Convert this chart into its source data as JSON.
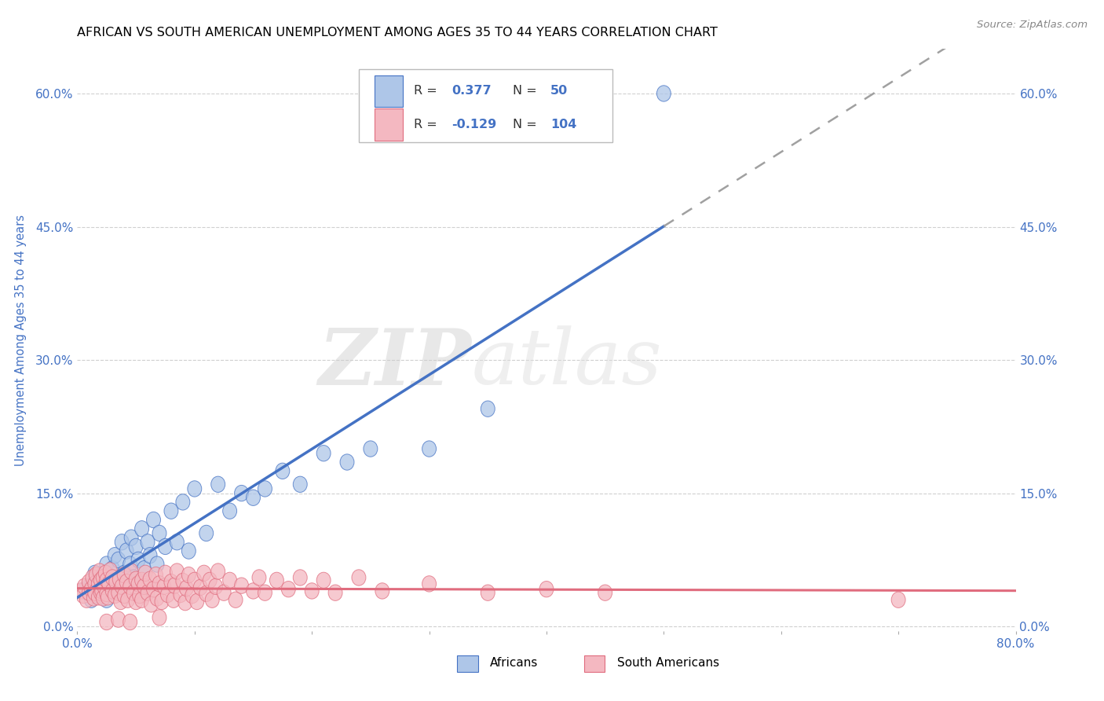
{
  "title": "AFRICAN VS SOUTH AMERICAN UNEMPLOYMENT AMONG AGES 35 TO 44 YEARS CORRELATION CHART",
  "source": "Source: ZipAtlas.com",
  "ylabel": "Unemployment Among Ages 35 to 44 years",
  "xlim": [
    0.0,
    0.8
  ],
  "ylim": [
    -0.005,
    0.65
  ],
  "xtick_labels_show": [
    "0.0%",
    "80.0%"
  ],
  "xtick_positions_show": [
    0.0,
    0.8
  ],
  "yticks": [
    0.0,
    0.15,
    0.3,
    0.45,
    0.6
  ],
  "yticklabels": [
    "0.0%",
    "15.0%",
    "30.0%",
    "45.0%",
    "60.0%"
  ],
  "african_R": 0.377,
  "african_N": 50,
  "south_american_R": -0.129,
  "south_american_N": 104,
  "african_fill_color": "#aec6e8",
  "african_edge_color": "#4472c4",
  "south_american_fill_color": "#f4b8c1",
  "south_american_edge_color": "#e06c7e",
  "legend_text_color": "#4472c4",
  "axis_color": "#4472c4",
  "grid_color": "#d0d0d0",
  "african_line_color": "#4472c4",
  "south_american_line_color": "#e06c7e",
  "dashed_continuation_color": "#a0a0a0",
  "african_x": [
    0.005,
    0.01,
    0.012,
    0.015,
    0.018,
    0.02,
    0.022,
    0.025,
    0.025,
    0.028,
    0.03,
    0.032,
    0.033,
    0.035,
    0.037,
    0.038,
    0.04,
    0.042,
    0.045,
    0.046,
    0.048,
    0.05,
    0.052,
    0.055,
    0.057,
    0.06,
    0.062,
    0.065,
    0.068,
    0.07,
    0.075,
    0.08,
    0.085,
    0.09,
    0.095,
    0.1,
    0.11,
    0.12,
    0.13,
    0.14,
    0.15,
    0.16,
    0.175,
    0.19,
    0.21,
    0.23,
    0.25,
    0.3,
    0.35,
    0.5
  ],
  "african_y": [
    0.04,
    0.045,
    0.03,
    0.06,
    0.035,
    0.055,
    0.04,
    0.07,
    0.03,
    0.05,
    0.065,
    0.08,
    0.04,
    0.075,
    0.055,
    0.095,
    0.06,
    0.085,
    0.07,
    0.1,
    0.055,
    0.09,
    0.075,
    0.11,
    0.065,
    0.095,
    0.08,
    0.12,
    0.07,
    0.105,
    0.09,
    0.13,
    0.095,
    0.14,
    0.085,
    0.155,
    0.105,
    0.16,
    0.13,
    0.15,
    0.145,
    0.155,
    0.175,
    0.16,
    0.195,
    0.185,
    0.2,
    0.2,
    0.245,
    0.6
  ],
  "south_american_x": [
    0.003,
    0.005,
    0.006,
    0.008,
    0.01,
    0.01,
    0.012,
    0.013,
    0.014,
    0.015,
    0.015,
    0.016,
    0.018,
    0.018,
    0.019,
    0.02,
    0.02,
    0.021,
    0.022,
    0.022,
    0.023,
    0.024,
    0.025,
    0.025,
    0.026,
    0.027,
    0.028,
    0.03,
    0.03,
    0.032,
    0.033,
    0.035,
    0.036,
    0.037,
    0.038,
    0.04,
    0.04,
    0.042,
    0.043,
    0.045,
    0.046,
    0.048,
    0.05,
    0.05,
    0.052,
    0.053,
    0.055,
    0.055,
    0.057,
    0.058,
    0.06,
    0.062,
    0.063,
    0.065,
    0.067,
    0.068,
    0.07,
    0.072,
    0.074,
    0.075,
    0.077,
    0.08,
    0.082,
    0.083,
    0.085,
    0.088,
    0.09,
    0.092,
    0.093,
    0.095,
    0.098,
    0.1,
    0.102,
    0.105,
    0.108,
    0.11,
    0.113,
    0.115,
    0.118,
    0.12,
    0.125,
    0.13,
    0.135,
    0.14,
    0.15,
    0.155,
    0.16,
    0.17,
    0.18,
    0.19,
    0.2,
    0.21,
    0.22,
    0.24,
    0.26,
    0.3,
    0.35,
    0.4,
    0.45,
    0.7,
    0.025,
    0.035,
    0.045,
    0.07
  ],
  "south_american_y": [
    0.04,
    0.035,
    0.045,
    0.03,
    0.05,
    0.038,
    0.042,
    0.055,
    0.032,
    0.048,
    0.038,
    0.058,
    0.033,
    0.048,
    0.062,
    0.038,
    0.052,
    0.04,
    0.055,
    0.032,
    0.045,
    0.06,
    0.037,
    0.052,
    0.033,
    0.048,
    0.063,
    0.04,
    0.055,
    0.035,
    0.05,
    0.038,
    0.053,
    0.028,
    0.045,
    0.058,
    0.035,
    0.05,
    0.03,
    0.045,
    0.062,
    0.038,
    0.053,
    0.028,
    0.048,
    0.035,
    0.052,
    0.03,
    0.045,
    0.06,
    0.038,
    0.053,
    0.025,
    0.042,
    0.058,
    0.032,
    0.048,
    0.028,
    0.045,
    0.06,
    0.036,
    0.05,
    0.03,
    0.046,
    0.062,
    0.036,
    0.051,
    0.027,
    0.043,
    0.058,
    0.035,
    0.052,
    0.028,
    0.044,
    0.06,
    0.037,
    0.052,
    0.03,
    0.045,
    0.062,
    0.038,
    0.052,
    0.03,
    0.046,
    0.04,
    0.055,
    0.038,
    0.052,
    0.042,
    0.055,
    0.04,
    0.052,
    0.038,
    0.055,
    0.04,
    0.048,
    0.038,
    0.042,
    0.038,
    0.03,
    0.005,
    0.008,
    0.005,
    0.01
  ]
}
